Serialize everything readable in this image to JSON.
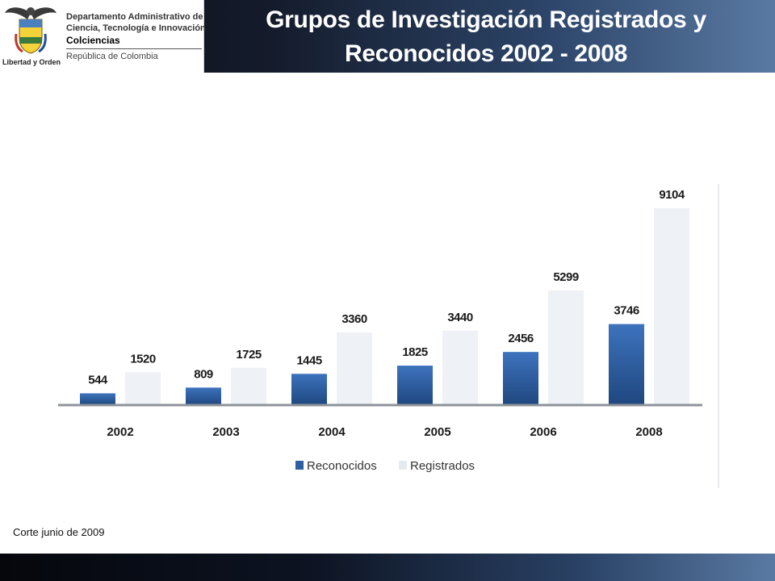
{
  "header": {
    "title_line1": "Grupos de Investigación Registrados y",
    "title_line2": "Reconocidos  2002 - 2008",
    "accent_color": "#1f3a5c"
  },
  "logo": {
    "motto": "Libertad y Orden",
    "line1": "Departamento Administrativo de",
    "line2": "Ciencia, Tecnología e Innovación",
    "name": "Colciencias",
    "country": "República de Colombia",
    "emblem_icon": "coat-of-arms-icon"
  },
  "footnote": "Corte junio de 2009",
  "chart_data": {
    "type": "bar",
    "categories": [
      "2002",
      "2003",
      "2004",
      "2005",
      "2006",
      "2008"
    ],
    "series": [
      {
        "name": "Reconocidos",
        "values": [
          544,
          809,
          1445,
          1825,
          2456,
          3746
        ],
        "color": "#2e5fa3"
      },
      {
        "name": "Registrados",
        "values": [
          1520,
          1725,
          3360,
          3440,
          5299,
          9104
        ],
        "color": "#eef1f5"
      }
    ],
    "ylim": [
      0,
      9104
    ],
    "grid": false,
    "legend_position": "bottom",
    "data_labels": true
  }
}
